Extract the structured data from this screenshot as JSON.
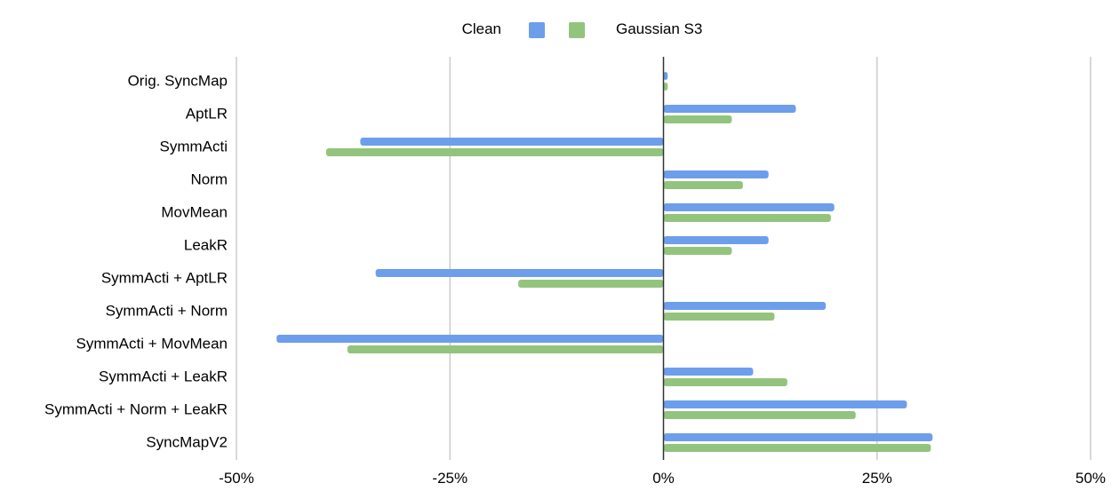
{
  "chart_data": {
    "type": "bar",
    "orientation": "horizontal",
    "title": "",
    "xlabel": "",
    "ylabel": "",
    "xlim": [
      -50,
      50
    ],
    "grid": true,
    "legend_position": "top",
    "tick_values": [
      -50,
      -25,
      0,
      25,
      50
    ],
    "tick_labels": [
      "-50%",
      "-25%",
      "0%",
      "25%",
      "50%"
    ],
    "categories": [
      "Orig. SyncMap",
      "AptLR",
      "SymmActi",
      "Norm",
      "MovMean",
      "LeakR",
      "SymmActi + AptLR",
      "SymmActi + Norm",
      "SymmActi + MovMean",
      "SymmActi + LeakR",
      "SymmActi + Norm + LeakR",
      "SyncMapV2"
    ],
    "series": [
      {
        "name": "Clean",
        "color": "#6d9eeb",
        "values": [
          0.5,
          15.5,
          -35.5,
          12.3,
          20,
          12.3,
          -33.7,
          19,
          -45.3,
          10.5,
          28.5,
          31.5
        ]
      },
      {
        "name": "Gaussian S3",
        "color": "#93c47d",
        "values": [
          0.5,
          8,
          -39.5,
          9.3,
          19.6,
          8,
          -17,
          13,
          -37,
          14.5,
          22.5,
          31.3
        ]
      }
    ]
  }
}
